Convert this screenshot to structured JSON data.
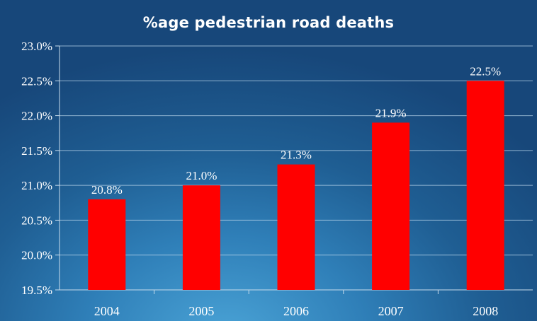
{
  "chart_data": {
    "type": "bar",
    "title": "%age pedestrian road deaths",
    "categories": [
      "2004",
      "2005",
      "2006",
      "2007",
      "2008"
    ],
    "values": [
      20.8,
      21.0,
      21.3,
      21.9,
      22.5
    ],
    "data_labels": [
      "20.8%",
      "21.0%",
      "21.3%",
      "21.9%",
      "22.5%"
    ],
    "xlabel": "",
    "ylabel": "",
    "ylim": [
      19.5,
      23.0
    ],
    "yticks": [
      19.5,
      20.0,
      20.5,
      21.0,
      21.5,
      22.0,
      22.5,
      23.0
    ],
    "ytick_labels": [
      "19.5%",
      "20.0%",
      "20.5%",
      "21.0%",
      "21.5%",
      "22.0%",
      "22.5%",
      "23.0%"
    ],
    "grid": true,
    "legend": "none",
    "colors": {
      "bar": "#ff0000",
      "text": "#ffffff",
      "grid": "#b8d4ea",
      "axis": "#c8dcec"
    }
  }
}
